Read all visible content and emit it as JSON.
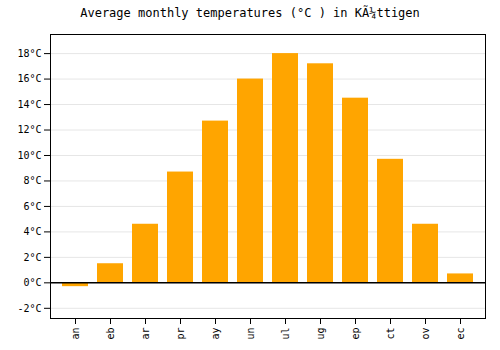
{
  "chart_data": {
    "type": "bar",
    "title": "Average monthly temperatures (°C ) in KÃ¼ttigen",
    "categories": [
      "an",
      "eb",
      "ar",
      "pr",
      "ay",
      "un",
      "ul",
      "ug",
      "ep",
      "ct",
      "ov",
      "ec"
    ],
    "values": [
      -0.3,
      1.5,
      4.6,
      8.7,
      12.7,
      16.0,
      18.0,
      17.2,
      14.5,
      9.7,
      4.6,
      0.7
    ],
    "color": "#FFA500",
    "ylim": [
      -2.8,
      19.5
    ],
    "yticks": [
      {
        "value": -2,
        "label": "-2°C"
      },
      {
        "value": 0,
        "label": "0°C"
      },
      {
        "value": 2,
        "label": "2°C"
      },
      {
        "value": 4,
        "label": "4°C"
      },
      {
        "value": 6,
        "label": "6°C"
      },
      {
        "value": 8,
        "label": "8°C"
      },
      {
        "value": 10,
        "label": "10°C"
      },
      {
        "value": 12,
        "label": "12°C"
      },
      {
        "value": 14,
        "label": "14°C"
      },
      {
        "value": 16,
        "label": "16°C"
      },
      {
        "value": 18,
        "label": "18°C"
      }
    ],
    "grid": true
  }
}
